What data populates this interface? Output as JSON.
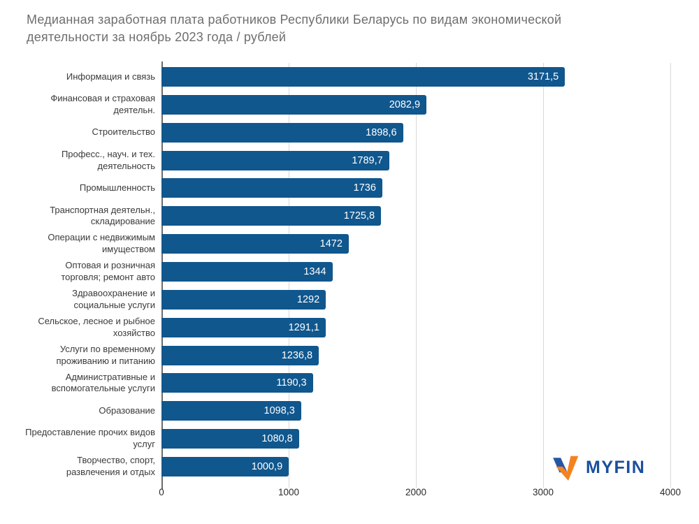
{
  "title": "Медианная заработная плата работников Республики Беларусь по видам экономической деятельности за ноябрь 2023 года / рублей",
  "branding": {
    "logo_text": "MYFIN"
  },
  "colors": {
    "background": "#ffffff",
    "bar": "#10578e",
    "title_text": "#6e6e6e",
    "category_label": "#3a3a3a",
    "value_label": "#ffffff",
    "gridline": "#d8d8d8",
    "axis_line": "#6b6b6b",
    "tick_label": "#2a2a2a",
    "logo_blue": "#2456a4",
    "logo_orange": "#f5821f",
    "logo_text_color": "#1a4f9c"
  },
  "chart_data": {
    "type": "bar",
    "orientation": "horizontal",
    "title": "Медианная заработная плата работников Республики Беларусь по видам экономической деятельности за ноябрь 2023 года / рублей",
    "xlabel": "",
    "ylabel": "",
    "xlim": [
      0,
      4000
    ],
    "x_ticks": [
      0,
      1000,
      2000,
      3000,
      4000
    ],
    "x_tick_labels": [
      "0",
      "1000",
      "2000",
      "3000",
      "4000"
    ],
    "grid": true,
    "legend": false,
    "value_labels_position": "inside-end",
    "categories": [
      "Информация и связь",
      "Финансовая и страховая деятельн.",
      "Строительство",
      "Професс., науч. и тех. деятельность",
      "Промышленность",
      "Транспортная деятельн., складирование",
      "Операции с недвижимым имуществом",
      "Оптовая и розничная торговля; ремонт авто",
      "Здравоохранение и социальные услуги",
      "Сельское, лесное и рыбное хозяйство",
      "Услуги по временному проживанию и питанию",
      "Административные и вспомогательные услуги",
      "Образование",
      "Предоставление прочих видов услуг",
      "Творчество, спорт, развлечения и отдых"
    ],
    "values": [
      3171.5,
      2082.9,
      1898.6,
      1789.7,
      1736,
      1725.8,
      1472,
      1344,
      1292,
      1291.1,
      1236.8,
      1190.3,
      1098.3,
      1080.8,
      1000.9
    ],
    "value_labels": [
      "3171,5",
      "2082,9",
      "1898,6",
      "1789,7",
      "1736",
      "1725,8",
      "1472",
      "1344",
      "1292",
      "1291,1",
      "1236,8",
      "1190,3",
      "1098,3",
      "1080,8",
      "1000,9"
    ]
  }
}
